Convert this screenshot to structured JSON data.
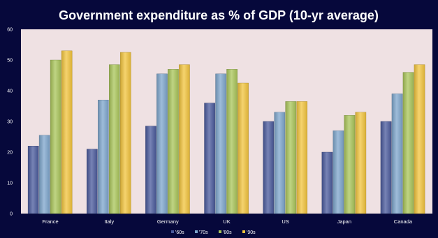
{
  "chart_data": {
    "type": "bar",
    "title": "Government expenditure as % of GDP (10-yr average)",
    "xlabel": "",
    "ylabel": "",
    "ylim": [
      0,
      60
    ],
    "yticks": [
      "0",
      "10",
      "20",
      "30",
      "40",
      "50",
      "60"
    ],
    "grid": false,
    "legend_position": "bottom",
    "categories": [
      "France",
      "Italy",
      "Germany",
      "UK",
      "US",
      "Japan",
      "Canada"
    ],
    "series": [
      {
        "name": "'60s",
        "color": "#4a5a9c",
        "values": [
          22,
          21,
          28.5,
          36,
          30,
          20,
          30
        ]
      },
      {
        "name": "'70s",
        "color": "#7ea6cc",
        "values": [
          25.5,
          37,
          45.5,
          45.5,
          33,
          27,
          39
        ]
      },
      {
        "name": "'80s",
        "color": "#a9c55a",
        "values": [
          50,
          48.5,
          47,
          47,
          36.5,
          32,
          46
        ]
      },
      {
        "name": "'90s",
        "color": "#f2c43d",
        "values": [
          53,
          52.5,
          48.5,
          42.5,
          36.5,
          33,
          48.5
        ]
      }
    ]
  },
  "colors": {
    "frame": "#06083b",
    "plot_background": "#efe1e3",
    "axis_text": "#ffffff"
  }
}
